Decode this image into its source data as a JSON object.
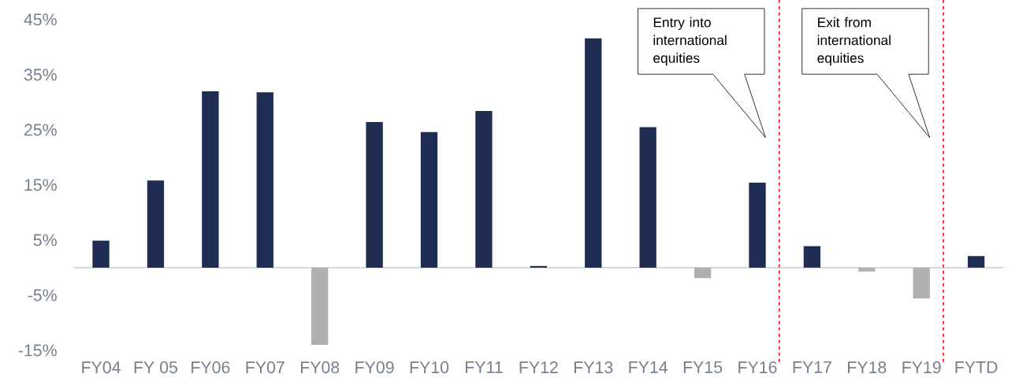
{
  "chart_data": {
    "type": "bar",
    "categories": [
      "FY04",
      "FY 05",
      "FY06",
      "FY07",
      "FY08",
      "FY09",
      "FY10",
      "FY11",
      "FY12",
      "FY13",
      "FY14",
      "FY15",
      "FY16",
      "FY17",
      "FY18",
      "FY19",
      "FYTD"
    ],
    "values": [
      4.9,
      15.8,
      32.0,
      31.8,
      -14.0,
      26.4,
      24.6,
      28.4,
      0.3,
      41.6,
      25.5,
      -1.9,
      15.4,
      3.9,
      -0.7,
      -5.6,
      2.1
    ],
    "colors": [
      "#1f2d52",
      "#1f2d52",
      "#1f2d52",
      "#1f2d52",
      "#b0b0b0",
      "#1f2d52",
      "#1f2d52",
      "#1f2d52",
      "#1f2d52",
      "#1f2d52",
      "#1f2d52",
      "#b0b0b0",
      "#1f2d52",
      "#1f2d52",
      "#b0b0b0",
      "#b0b0b0",
      "#1f2d52"
    ],
    "ylim": [
      -17.1,
      48.6
    ],
    "yticks": [
      {
        "value": -15,
        "label": "-15%"
      },
      {
        "value": -5,
        "label": "-5%"
      },
      {
        "value": 5,
        "label": "5%"
      },
      {
        "value": 15,
        "label": "15%"
      },
      {
        "value": 25,
        "label": "25%"
      },
      {
        "value": 35,
        "label": "35%"
      },
      {
        "value": 45,
        "label": "45%"
      }
    ],
    "annotations": [
      "Entry into international equities",
      "Exit from international equities"
    ]
  }
}
